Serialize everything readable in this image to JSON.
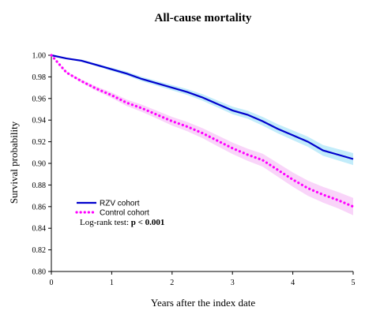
{
  "chart_data": {
    "type": "line",
    "title": "All-cause mortality",
    "xlabel": "Years after the index date",
    "ylabel": "Survival probability",
    "xlim": [
      0,
      5
    ],
    "ylim": [
      0.8,
      1.0
    ],
    "x_ticks": [
      "0",
      "1",
      "2",
      "3",
      "4",
      "5"
    ],
    "y_ticks": [
      "0.80",
      "0.82",
      "0.84",
      "0.86",
      "0.88",
      "0.90",
      "0.92",
      "0.94",
      "0.96",
      "0.98",
      "1.00"
    ],
    "grid": false,
    "legend_position": "lower-left",
    "series": [
      {
        "name": "RZV cohort",
        "color": "#0000cc",
        "ci_color": "#a8e4f8",
        "style": "solid",
        "x": [
          0,
          0.25,
          0.5,
          0.75,
          1,
          1.25,
          1.5,
          1.75,
          2,
          2.25,
          2.5,
          2.75,
          3,
          3.25,
          3.5,
          3.75,
          4,
          4.25,
          4.5,
          4.75,
          5
        ],
        "values": [
          1.0,
          0.997,
          0.995,
          0.991,
          0.987,
          0.983,
          0.978,
          0.974,
          0.97,
          0.966,
          0.961,
          0.955,
          0.949,
          0.945,
          0.939,
          0.932,
          0.926,
          0.92,
          0.912,
          0.908,
          0.904
        ],
        "ci_halfwidth": [
          0.0,
          0.0005,
          0.001,
          0.0012,
          0.0015,
          0.0018,
          0.002,
          0.0022,
          0.0025,
          0.0027,
          0.003,
          0.0032,
          0.0035,
          0.0037,
          0.004,
          0.0042,
          0.0045,
          0.0047,
          0.005,
          0.0052,
          0.0055
        ]
      },
      {
        "name": "Control cohort",
        "color": "#ff00ff",
        "ci_color": "#f7c2f7",
        "style": "dotted",
        "x": [
          0,
          0.25,
          0.5,
          0.75,
          1,
          1.25,
          1.5,
          1.75,
          2,
          2.25,
          2.5,
          2.75,
          3,
          3.25,
          3.5,
          3.75,
          4,
          4.25,
          4.5,
          4.75,
          5
        ],
        "values": [
          1.0,
          0.984,
          0.976,
          0.969,
          0.963,
          0.956,
          0.951,
          0.945,
          0.939,
          0.934,
          0.928,
          0.921,
          0.914,
          0.908,
          0.903,
          0.894,
          0.885,
          0.877,
          0.871,
          0.866,
          0.86
        ],
        "ci_halfwidth": [
          0.0,
          0.001,
          0.0015,
          0.002,
          0.0025,
          0.003,
          0.0033,
          0.0036,
          0.004,
          0.0043,
          0.0046,
          0.005,
          0.0053,
          0.0056,
          0.006,
          0.0063,
          0.0066,
          0.007,
          0.0073,
          0.0076,
          0.008
        ]
      }
    ],
    "annotation": {
      "prefix": "Log-rank test: ",
      "value": "p < 0.001"
    }
  }
}
